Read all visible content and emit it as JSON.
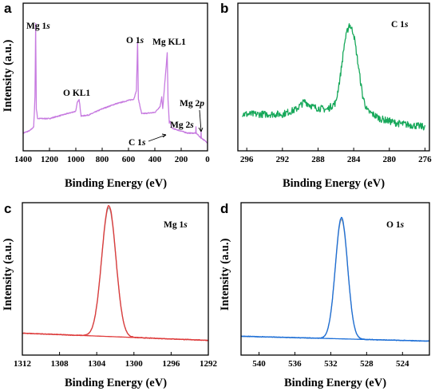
{
  "colors": {
    "survey": "#c77be0",
    "c1s": "#17a85a",
    "mg1s": "#e03a3a",
    "o1s": "#1c6fd8",
    "fit": "#999999"
  },
  "panel_labels": [
    "a",
    "b",
    "c",
    "d"
  ],
  "chart_data": [
    {
      "id": "a",
      "type": "line",
      "title": "",
      "xlabel": "Binding Energy (eV)",
      "ylabel": "Intensity (a.u.)",
      "xlim": [
        1400,
        0
      ],
      "x_reversed": true,
      "xticks": [
        "1400",
        "1200",
        "1000",
        "800",
        "600",
        "400",
        "200",
        "0"
      ],
      "series": [
        {
          "points": [
            [
              1400,
              0.1
            ],
            [
              1350,
              0.12
            ],
            [
              1320,
              0.15
            ],
            [
              1310,
              0.4
            ],
            [
              1305,
              1.0
            ],
            [
              1300,
              0.3
            ],
            [
              1290,
              0.22
            ],
            [
              1200,
              0.22
            ],
            [
              1100,
              0.25
            ],
            [
              1000,
              0.28
            ],
            [
              990,
              0.35
            ],
            [
              975,
              0.38
            ],
            [
              960,
              0.24
            ],
            [
              900,
              0.25
            ],
            [
              800,
              0.3
            ],
            [
              700,
              0.34
            ],
            [
              600,
              0.37
            ],
            [
              560,
              0.38
            ],
            [
              540,
              0.45
            ],
            [
              531,
              0.85
            ],
            [
              525,
              0.38
            ],
            [
              500,
              0.26
            ],
            [
              400,
              0.27
            ],
            [
              360,
              0.32
            ],
            [
              348,
              0.4
            ],
            [
              340,
              0.3
            ],
            [
              306,
              0.76
            ],
            [
              300,
              0.38
            ],
            [
              290,
              0.18
            ],
            [
              285,
              0.2
            ],
            [
              270,
              0.14
            ],
            [
              150,
              0.1
            ],
            [
              90,
              0.1
            ],
            [
              88,
              0.15
            ],
            [
              86,
              0.1
            ],
            [
              50,
              0.06
            ],
            [
              49,
              0.12
            ],
            [
              47,
              0.06
            ],
            [
              0,
              0.02
            ]
          ]
        }
      ],
      "annotations": [
        {
          "text": "Mg 1",
          "italic": "s"
        },
        {
          "text": "O KL1"
        },
        {
          "text": "O 1",
          "italic": "s"
        },
        {
          "text": "Mg KL1"
        },
        {
          "text": "Mg 2",
          "italic": "p"
        },
        {
          "text": "Mg 2",
          "italic": "s"
        },
        {
          "text": "C 1",
          "italic": "s"
        }
      ]
    },
    {
      "id": "b",
      "type": "line",
      "title": "C 1s",
      "xlabel": "Binding Energy (eV)",
      "ylabel": "",
      "xlim": [
        297,
        275.5
      ],
      "x_reversed": true,
      "xticks": [
        "296",
        "292",
        "288",
        "284",
        "280",
        "276"
      ],
      "series": [
        {
          "points": [
            [
              296.5,
              0.22
            ],
            [
              294,
              0.22
            ],
            [
              292,
              0.22
            ],
            [
              290.5,
              0.26
            ],
            [
              289.5,
              0.33
            ],
            [
              288.5,
              0.28
            ],
            [
              287,
              0.26
            ],
            [
              286,
              0.32
            ],
            [
              285.5,
              0.55
            ],
            [
              285,
              0.85
            ],
            [
              284.5,
              1.0
            ],
            [
              284,
              0.92
            ],
            [
              283.5,
              0.65
            ],
            [
              283,
              0.38
            ],
            [
              282.5,
              0.25
            ],
            [
              281,
              0.18
            ],
            [
              279,
              0.14
            ],
            [
              277,
              0.12
            ],
            [
              276,
              0.11
            ]
          ]
        }
      ],
      "annotations": [
        {
          "text": "C 1",
          "italic": "s"
        }
      ]
    },
    {
      "id": "c",
      "type": "line",
      "title": "Mg 1s",
      "xlabel": "Binding Energy (eV)",
      "ylabel": "Intensity (a.u.)",
      "xlim": [
        1312,
        1292
      ],
      "x_reversed": true,
      "xticks": [
        "1312",
        "1308",
        "1304",
        "1300",
        "1296",
        "1292"
      ],
      "series": [
        {
          "name": "",
          "peak_center": 1302.7,
          "peak_height": 1.0,
          "peak_fwhm": 1.8,
          "baseline_left": 0.07,
          "baseline_right": 0.015
        }
      ],
      "annotations": [
        {
          "text": "Mg 1",
          "italic": "s"
        }
      ]
    },
    {
      "id": "d",
      "type": "line",
      "title": "O 1s",
      "xlabel": "Binding Energy (eV)",
      "ylabel": "Intensity (a.u.)",
      "xlim": [
        542,
        521
      ],
      "x_reversed": true,
      "xticks": [
        "540",
        "536",
        "532",
        "528",
        "524"
      ],
      "series": [
        {
          "name": "",
          "peak_center": 530.8,
          "peak_height": 1.0,
          "peak_fwhm": 1.6,
          "baseline_left": 0.05,
          "baseline_right": 0.01
        }
      ],
      "annotations": [
        {
          "text": "O 1",
          "italic": "s"
        }
      ]
    }
  ]
}
